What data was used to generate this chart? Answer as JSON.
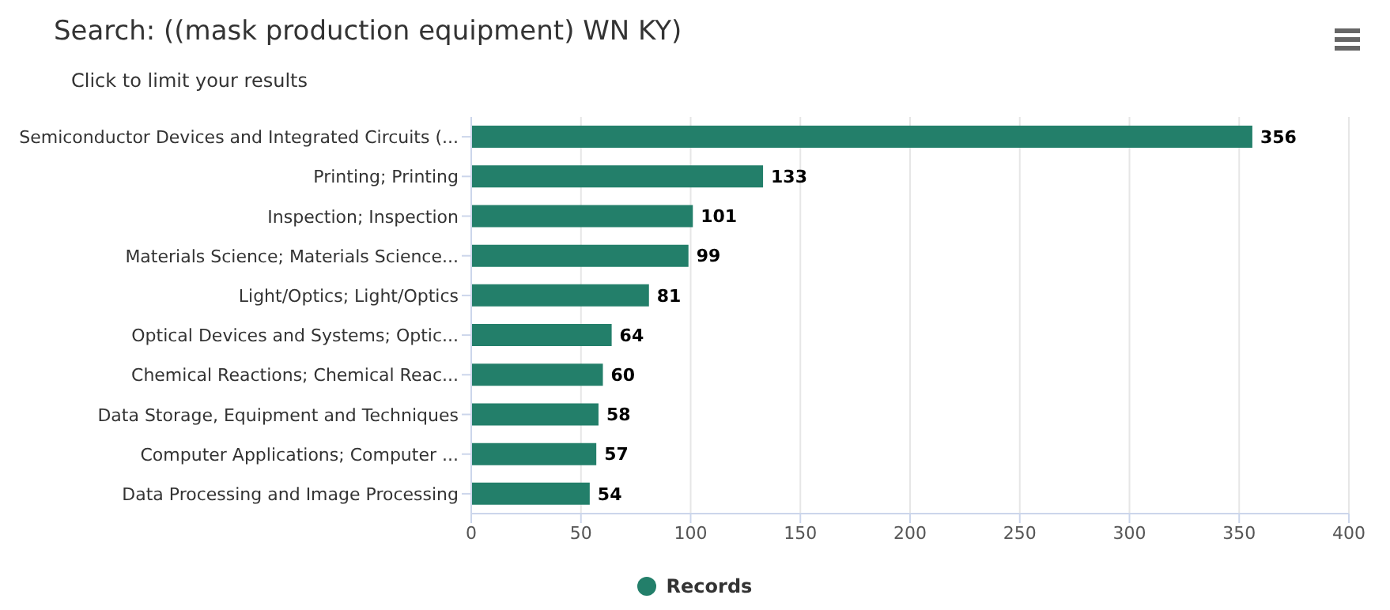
{
  "chart_data": {
    "type": "bar",
    "orientation": "horizontal",
    "title": "Search: ((mask production equipment) WN KY)",
    "subtitle": "Click to limit your results",
    "categories": [
      "Semiconductor Devices and Integrated Circuits (...",
      "Printing; Printing",
      "Inspection; Inspection",
      "Materials Science; Materials Science...",
      "Light/Optics; Light/Optics",
      "Optical Devices and Systems; Optic...",
      "Chemical Reactions; Chemical Reac...",
      "Data Storage, Equipment and Techniques",
      "Computer Applications; Computer ...",
      "Data Processing and Image Processing"
    ],
    "series": [
      {
        "name": "Records",
        "color": "#237f6a",
        "values": [
          356,
          133,
          101,
          99,
          81,
          64,
          60,
          58,
          57,
          54
        ]
      }
    ],
    "xlim": [
      0,
      400
    ],
    "xticks": [
      0,
      50,
      100,
      150,
      200,
      250,
      300,
      350,
      400
    ],
    "grid": "x",
    "legend": "bottom",
    "data_labels": true
  }
}
